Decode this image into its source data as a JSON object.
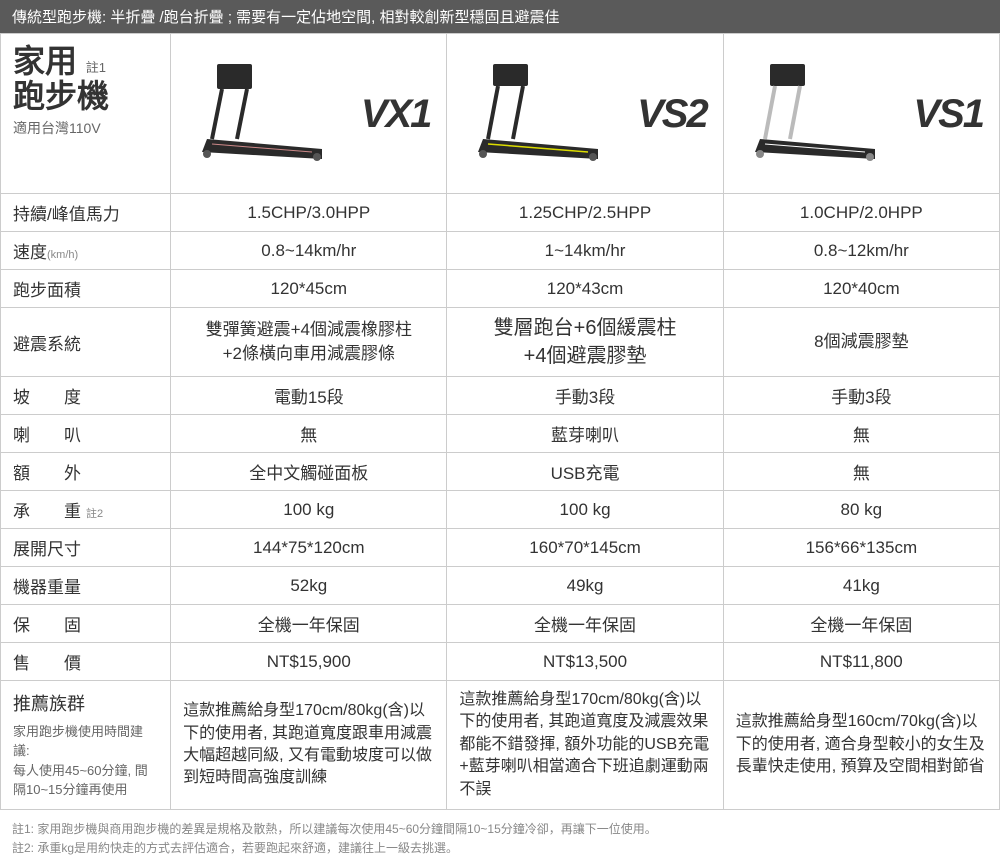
{
  "header_bar": "傳統型跑步機: 半折疊 /跑台折疊 ; 需要有一定佔地空間, 相對較創新型穩固且避震佳",
  "header_cell": {
    "line1": "家用",
    "note1": "註1",
    "line2": "跑步機",
    "sub": "適用台灣110V"
  },
  "models": [
    {
      "name": "VX1",
      "accent": "#c88",
      "frame": "#2a2a2a"
    },
    {
      "name": "VS2",
      "accent": "#dd0",
      "frame": "#2a2a2a"
    },
    {
      "name": "VS1",
      "accent": "#fff",
      "frame": "#bbb"
    }
  ],
  "rows": [
    {
      "label": "持續/峰值馬力",
      "values": [
        "1.5CHP/3.0HPP",
        "1.25CHP/2.5HPP",
        "1.0CHP/2.0HPP"
      ]
    },
    {
      "label": "速度",
      "label_sub": "(km/h)",
      "values": [
        "0.8~14km/hr",
        "1~14km/hr",
        "0.8~12km/hr"
      ]
    },
    {
      "label": "跑步面積",
      "values": [
        "120*45cm",
        "120*43cm",
        "120*40cm"
      ]
    }
  ],
  "shock": {
    "label": "避震系統",
    "values": [
      "雙彈簧避震+4個減震橡膠柱\n+2條橫向車用減震膠條",
      "雙層跑台+6個緩震柱\n+4個避震膠墊",
      "8個減震膠墊"
    ],
    "highlight_index": 1
  },
  "rows2": [
    {
      "label": "坡　　度",
      "values": [
        "電動15段",
        "手動3段",
        "手動3段"
      ]
    },
    {
      "label": "喇　　叭",
      "values": [
        "無",
        "藍芽喇叭",
        "無"
      ]
    },
    {
      "label": "額　　外",
      "values": [
        "全中文觸碰面板",
        "USB充電",
        "無"
      ]
    },
    {
      "label": "承　　重",
      "label_note": "註2",
      "values": [
        "100 kg",
        "100 kg",
        "80 kg"
      ]
    },
    {
      "label": "展開尺寸",
      "values": [
        "144*75*120cm",
        "160*70*145cm",
        "156*66*135cm"
      ]
    },
    {
      "label": "機器重量",
      "values": [
        "52kg",
        "49kg",
        "41kg"
      ]
    },
    {
      "label": "保　　固",
      "values": [
        "全機一年保固",
        "全機一年保固",
        "全機一年保固"
      ]
    },
    {
      "label": "售　　價",
      "values": [
        "NT$15,900",
        "NT$13,500",
        "NT$11,800"
      ]
    }
  ],
  "recommend": {
    "label_main": "推薦族群",
    "label_sub": "家用跑步機使用時間建議:\n每人使用45~60分鐘, 間隔10~15分鐘再使用",
    "values": [
      "這款推薦給身型170cm/80kg(含)以下的使用者, 其跑道寬度跟車用減震大幅超越同級, 又有電動坡度可以做到短時間高強度訓練",
      "這款推薦給身型170cm/80kg(含)以下的使用者, 其跑道寬度及減震效果都能不錯發揮, 額外功能的USB充電+藍芽喇叭相當適合下班追劇運動兩不誤",
      "這款推薦給身型160cm/70kg(含)以下的使用者, 適合身型較小的女生及長輩快走使用, 預算及空間相對節省"
    ]
  },
  "footnotes": [
    "註1: 家用跑步機與商用跑步機的差異是規格及散熱，所以建議每次使用45~60分鐘間隔10~15分鐘冷卻，再讓下一位使用。",
    "註2: 承重kg是用約快走的方式去評估適合，若要跑起來舒適，建議往上一級去挑選。"
  ],
  "colors": {
    "header_bg": "#5a5a5a",
    "border": "#cccccc",
    "text": "#333333",
    "sub_text": "#888888"
  }
}
